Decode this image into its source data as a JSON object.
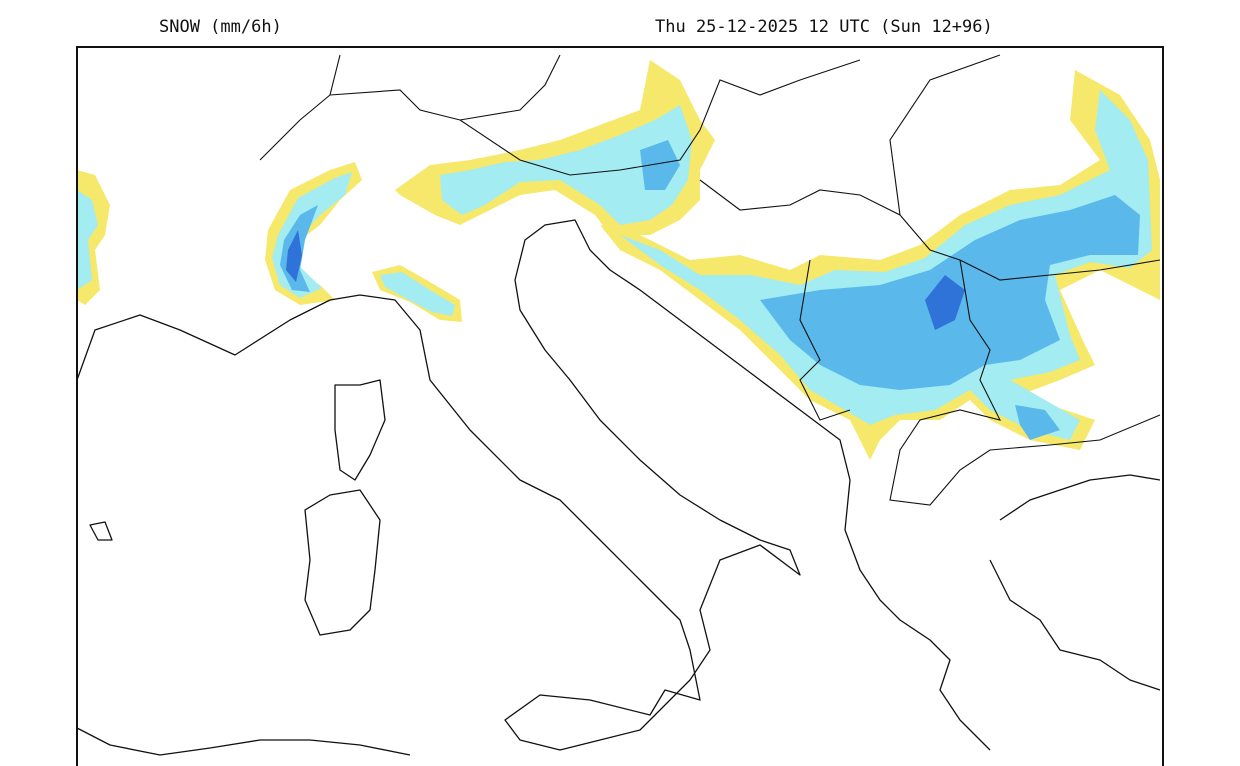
{
  "header": {
    "field": "SNOW (mm/6h)",
    "valid_time": "Thu 25-12-2025 12 UTC (Sun 12+96)"
  }
}
